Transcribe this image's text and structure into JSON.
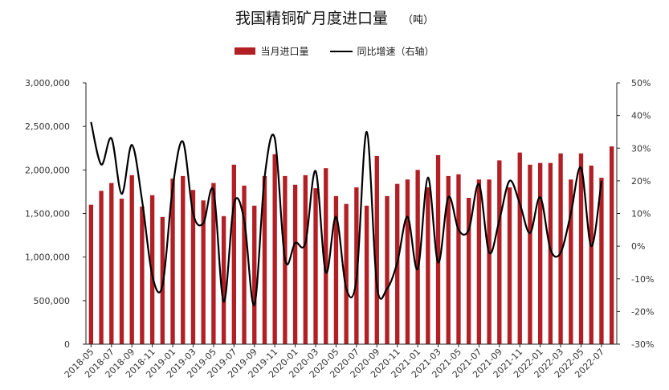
{
  "header": {
    "title": "我国精铜矿月度进口量",
    "unit": "（吨）"
  },
  "legend": [
    {
      "label": "当月进口量",
      "type": "bar",
      "color": "#b21f24"
    },
    {
      "label": "同比增速（右轴）",
      "type": "line",
      "color": "#000000"
    }
  ],
  "chart_data": {
    "type": "bar",
    "title": "我国精铜矿月度进口量",
    "unit": "（吨）",
    "categories": [
      "2018-05",
      "2018-06",
      "2018-07",
      "2018-08",
      "2018-09",
      "2018-10",
      "2018-11",
      "2018-12",
      "2019-01",
      "2019-02",
      "2019-03",
      "2019-04",
      "2019-05",
      "2019-06",
      "2019-07",
      "2019-08",
      "2019-09",
      "2019-10",
      "2019-11",
      "2019-12",
      "2020-01",
      "2020-02",
      "2020-03",
      "2020-04",
      "2020-05",
      "2020-06",
      "2020-07",
      "2020-08",
      "2020-09",
      "2020-10",
      "2020-11",
      "2020-12",
      "2021-01",
      "2021-02",
      "2021-03",
      "2021-04",
      "2021-05",
      "2021-06",
      "2021-07",
      "2021-08",
      "2021-09",
      "2021-10",
      "2021-11",
      "2021-12",
      "2022-01",
      "2022-02",
      "2022-03",
      "2022-04",
      "2022-05",
      "2022-06",
      "2022-07",
      "2022-08"
    ],
    "x_tick_labels": [
      "2018-05",
      "2018-07",
      "2018-09",
      "2018-11",
      "2019-01",
      "2019-03",
      "2019-05",
      "2019-07",
      "2019-09",
      "2019-11",
      "2020-01",
      "2020-03",
      "2020-05",
      "2020-07",
      "2020-09",
      "2020-11",
      "2021-01",
      "2021-03",
      "2021-05",
      "2021-07",
      "2021-09",
      "2021-11",
      "2022-01",
      "2022-03",
      "2022-05",
      "2022-07"
    ],
    "series": [
      {
        "name": "当月进口量",
        "type": "bar",
        "axis": "left",
        "color": "#b21f24",
        "values": [
          1600000,
          1760000,
          1850000,
          1670000,
          1940000,
          1580000,
          1710000,
          1460000,
          1900000,
          1930000,
          1770000,
          1650000,
          1850000,
          1470000,
          2060000,
          1820000,
          1590000,
          1930000,
          2180000,
          1930000,
          1830000,
          1940000,
          1790000,
          2020000,
          1700000,
          1610000,
          1800000,
          1590000,
          2160000,
          1700000,
          1840000,
          1890000,
          2000000,
          1800000,
          2170000,
          1930000,
          1950000,
          1680000,
          1890000,
          1890000,
          2110000,
          1800000,
          2200000,
          2060000,
          2080000,
          2080000,
          2190000,
          1890000,
          2190000,
          2050000,
          1910000,
          2270000
        ]
      },
      {
        "name": "同比增速（右轴）",
        "type": "line",
        "axis": "right",
        "color": "#000000",
        "values": [
          38,
          25,
          33,
          16,
          31,
          14,
          -9,
          -12,
          18,
          32,
          10,
          7,
          17,
          -17,
          13,
          8,
          -18,
          21,
          33,
          -4,
          1,
          1,
          23,
          -8,
          9,
          -13,
          -10,
          35,
          -12,
          -13,
          -5,
          9,
          -7,
          21,
          -5,
          15,
          5,
          5,
          19,
          -2,
          8,
          20,
          13,
          4,
          15,
          -1,
          -2,
          10,
          24,
          0,
          20,
          null
        ]
      }
    ],
    "yaxis_left": {
      "min": 0,
      "max": 3000000,
      "ticks": [
        "0",
        "500,000",
        "1,000,000",
        "1,500,000",
        "2,000,000",
        "2,500,000",
        "3,000,000"
      ]
    },
    "yaxis_right": {
      "min": -30,
      "max": 50,
      "ticks": [
        "-30%",
        "-20%",
        "-10%",
        "0%",
        "10%",
        "20%",
        "30%",
        "40%",
        "50%"
      ]
    },
    "grid": false,
    "legend_position": "top-center"
  }
}
